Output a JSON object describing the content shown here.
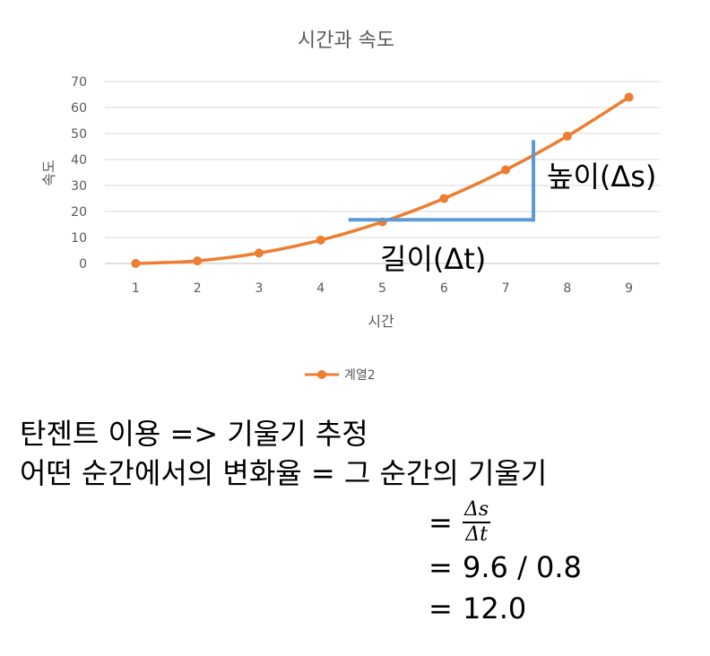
{
  "chart_data": {
    "type": "line",
    "title": "시간과 속도",
    "xlabel": "시간",
    "ylabel": "속도",
    "categories": [
      "1",
      "2",
      "3",
      "4",
      "5",
      "6",
      "7",
      "8",
      "9"
    ],
    "ylim": [
      0,
      70
    ],
    "yticks": [
      0,
      10,
      20,
      30,
      40,
      50,
      60,
      70
    ],
    "grid": true,
    "legend_position": "bottom",
    "series": [
      {
        "name": "계열2",
        "values": [
          0,
          1,
          4,
          9,
          16,
          25,
          36,
          49,
          64
        ],
        "color": "#ed7d31"
      }
    ],
    "annotations": {
      "height_label": "높이(Δs)",
      "length_label": "길이(Δt)",
      "tangent_color": "#5b9bd5",
      "tangent_start_x": 4.45,
      "tangent_end_x": 7.45,
      "tangent_y": 16.8,
      "vertical_top_y": 47.5
    }
  },
  "text": {
    "line1": "탄젠트 이용 => 기울기 추정",
    "line2": "어떤 순간에서의 변화율 = 그 순간의 기울기"
  },
  "equation": {
    "eq_sign": "=",
    "frac_num": "Δs",
    "frac_den": "Δt",
    "value_expr": "9.6 / 0.8",
    "result": "12.0"
  }
}
